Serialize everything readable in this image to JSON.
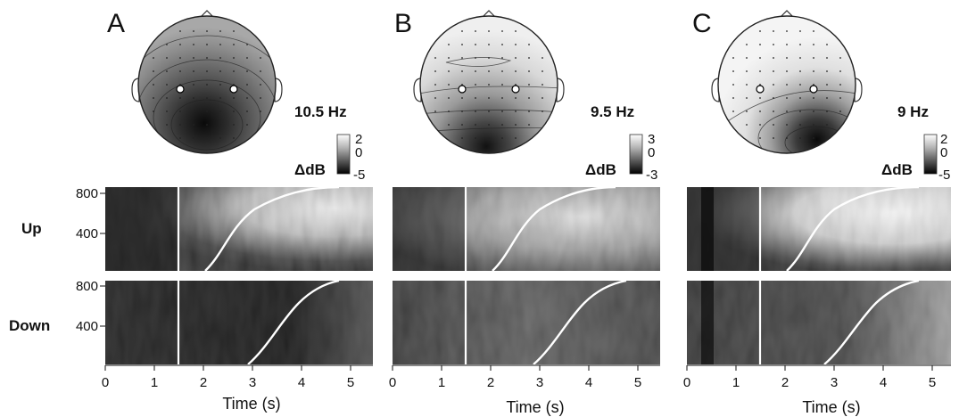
{
  "panels": [
    {
      "letter": "A",
      "freq": "10.5 Hz",
      "cbar_max": "2",
      "cbar_mid": "0",
      "cbar_min": "-5"
    },
    {
      "letter": "B",
      "freq": "9.5 Hz",
      "cbar_max": "3",
      "cbar_mid": "0",
      "cbar_min": "-3"
    },
    {
      "letter": "C",
      "freq": "9 Hz",
      "cbar_max": "2",
      "cbar_mid": "0",
      "cbar_min": "-5"
    }
  ],
  "colorbar_unit": "ΔdB",
  "rows": {
    "up": "Up",
    "down": "Down"
  },
  "y_ticks": [
    "800",
    "400"
  ],
  "x_ticks": [
    "0",
    "1",
    "2",
    "3",
    "4",
    "5"
  ],
  "x_label": "Time (s)"
}
